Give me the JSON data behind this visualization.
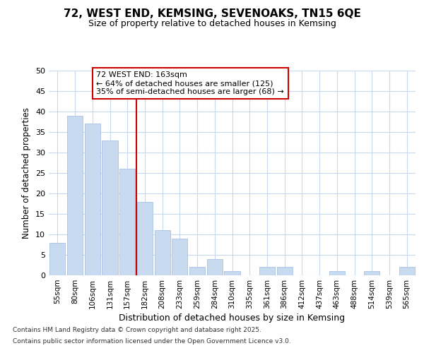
{
  "title": "72, WEST END, KEMSING, SEVENOAKS, TN15 6QE",
  "subtitle": "Size of property relative to detached houses in Kemsing",
  "xlabel": "Distribution of detached houses by size in Kemsing",
  "ylabel": "Number of detached properties",
  "categories": [
    "55sqm",
    "80sqm",
    "106sqm",
    "131sqm",
    "157sqm",
    "182sqm",
    "208sqm",
    "233sqm",
    "259sqm",
    "284sqm",
    "310sqm",
    "335sqm",
    "361sqm",
    "386sqm",
    "412sqm",
    "437sqm",
    "463sqm",
    "488sqm",
    "514sqm",
    "539sqm",
    "565sqm"
  ],
  "values": [
    8,
    39,
    37,
    33,
    26,
    18,
    11,
    9,
    2,
    4,
    1,
    0,
    2,
    2,
    0,
    0,
    1,
    0,
    1,
    0,
    2
  ],
  "bar_color": "#c8daf0",
  "bar_edge_color": "#b0c8e8",
  "vline_x_idx": 4.5,
  "vline_color": "#cc0000",
  "annotation_text": "72 WEST END: 163sqm\n← 64% of detached houses are smaller (125)\n35% of semi-detached houses are larger (68) →",
  "annotation_box_color": "#ffffff",
  "annotation_box_edge": "#cc0000",
  "ylim": [
    0,
    50
  ],
  "yticks": [
    0,
    5,
    10,
    15,
    20,
    25,
    30,
    35,
    40,
    45,
    50
  ],
  "footnote1": "Contains HM Land Registry data © Crown copyright and database right 2025.",
  "footnote2": "Contains public sector information licensed under the Open Government Licence v3.0.",
  "bg_color": "#ffffff",
  "plot_bg_color": "#ffffff",
  "grid_color": "#c8d8f0"
}
